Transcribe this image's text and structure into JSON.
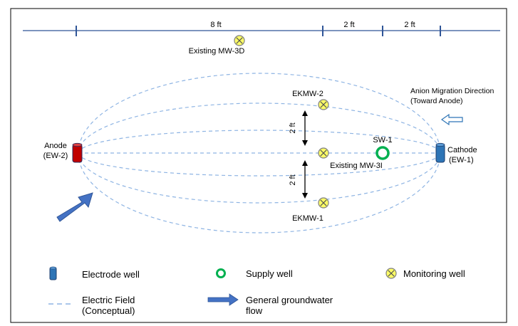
{
  "scale_bar": {
    "segments": [
      {
        "label": "8 ft"
      },
      {
        "label": "2 ft"
      },
      {
        "label": "2 ft"
      }
    ]
  },
  "wells": {
    "existing_mw_3d": {
      "label": "Existing MW-3D",
      "type": "monitoring"
    },
    "ekmw_2": {
      "label": "EKMW-2",
      "type": "monitoring"
    },
    "existing_mw_3i": {
      "label": "Existing MW-3I",
      "type": "monitoring"
    },
    "ekmw_1": {
      "label": "EKMW-1",
      "type": "monitoring"
    },
    "sw_1": {
      "label": "SW-1",
      "type": "supply"
    }
  },
  "anode": {
    "line1": "Anode",
    "line2": "(EW-2)"
  },
  "cathode": {
    "line1": "Cathode",
    "line2": "(EW-1)"
  },
  "spacing_upper": {
    "label": "2 ft"
  },
  "spacing_lower": {
    "label": "2 ft"
  },
  "anion_migration": {
    "line1": "Anion Migration Direction",
    "line2": "(Toward Anode)"
  },
  "legend": {
    "electrode_well": "Electrode well",
    "supply_well": "Supply well",
    "monitoring_well": "Monitoring well",
    "electric_field_line1": "Electric Field",
    "electric_field_line2": "(Conceptual)",
    "groundwater_line1": "General groundwater",
    "groundwater_line2": "flow"
  },
  "colors": {
    "scale_line": "#2f5597",
    "field_line": "#8eb4e3",
    "anode_fill": "#c00000",
    "cathode_fill": "#2e75b6",
    "monitoring_fill": "#ffff66",
    "supply_ring": "#00b050",
    "flow_arrow": "#4472c4"
  }
}
